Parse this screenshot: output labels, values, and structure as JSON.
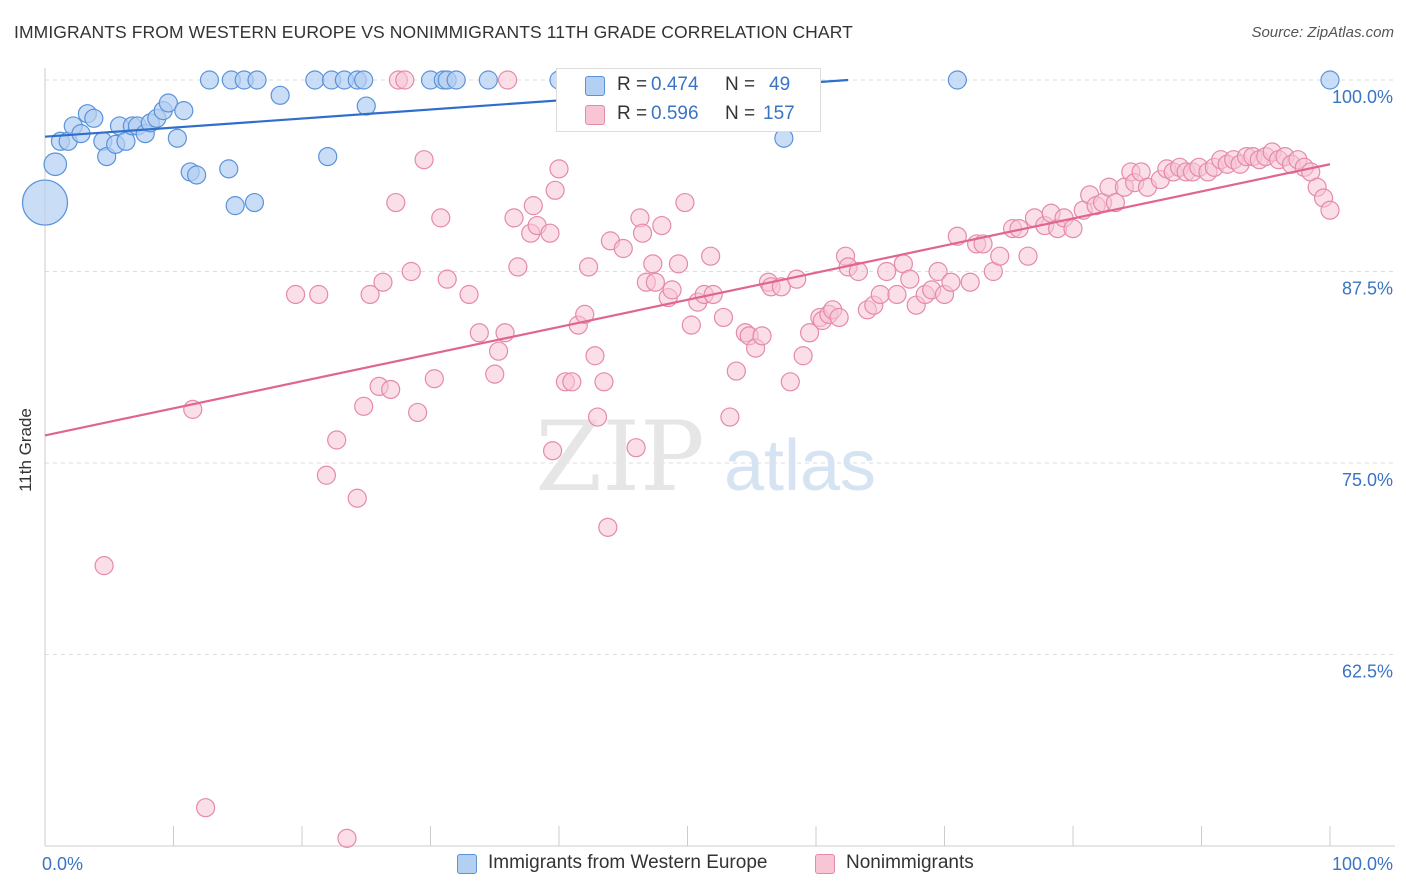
{
  "title": "IMMIGRANTS FROM WESTERN EUROPE VS NONIMMIGRANTS 11TH GRADE CORRELATION CHART",
  "source": "Source: ZipAtlas.com",
  "watermark": {
    "zip": "ZIP",
    "atlas": "atlas"
  },
  "legend": {
    "r_label": "R =",
    "n_label": "N =",
    "blue": {
      "r": "0.474",
      "n": "49"
    },
    "pink": {
      "r": "0.596",
      "n": "157"
    }
  },
  "bottom_legend": {
    "blue": "Immigrants from Western Europe",
    "pink": "Nonimmigrants"
  },
  "colors": {
    "blue_fill": "#b3cff2",
    "blue_stroke": "#5b93d9",
    "blue_line": "#2f6fcb",
    "pink_fill": "#f8c5d5",
    "pink_stroke": "#e58aa8",
    "pink_line": "#e0668f",
    "tick_label": "#3a74c4",
    "grid": "#dddddd"
  },
  "chart_data": {
    "type": "scatter",
    "title": "IMMIGRANTS FROM WESTERN EUROPE VS NONIMMIGRANTS 11TH GRADE CORRELATION CHART",
    "xlabel": "",
    "ylabel": "11th Grade",
    "xlim": [
      0,
      100
    ],
    "ylim": [
      50,
      100
    ],
    "x_tick_labels": [
      "0.0%",
      "100.0%"
    ],
    "y_ticks": [
      62.5,
      75.0,
      87.5,
      100.0
    ],
    "y_tick_labels": [
      "62.5%",
      "75.0%",
      "87.5%",
      "100.0%"
    ],
    "grid": true,
    "legend_position": "top-center",
    "series": [
      {
        "name": "Immigrants from Western Europe",
        "r": 0.474,
        "n": 49,
        "trend": {
          "x": [
            0,
            62.5
          ],
          "y": [
            96.3,
            100.0
          ]
        },
        "points": [
          [
            0.0,
            92.0,
            3
          ],
          [
            0.8,
            94.5,
            1.5
          ],
          [
            1.2,
            96.0,
            1.2
          ],
          [
            1.8,
            96.0,
            1.2
          ],
          [
            2.2,
            97.0,
            1.2
          ],
          [
            2.8,
            96.5,
            1.2
          ],
          [
            3.3,
            97.8,
            1.2
          ],
          [
            3.8,
            97.5,
            1.2
          ],
          [
            4.5,
            96.0,
            1.2
          ],
          [
            4.8,
            95.0,
            1.2
          ],
          [
            5.5,
            95.8,
            1.2
          ],
          [
            5.8,
            97.0,
            1.2
          ],
          [
            6.3,
            96.0,
            1.2
          ],
          [
            6.8,
            97.0,
            1.2
          ],
          [
            7.2,
            97.0,
            1.2
          ],
          [
            7.8,
            96.5,
            1.2
          ],
          [
            8.2,
            97.2,
            1.2
          ],
          [
            8.7,
            97.5,
            1.2
          ],
          [
            9.2,
            98.0,
            1.2
          ],
          [
            9.6,
            98.5,
            1.2
          ],
          [
            10.3,
            96.2,
            1.2
          ],
          [
            10.8,
            98.0,
            1.2
          ],
          [
            11.3,
            94.0,
            1.2
          ],
          [
            11.8,
            93.8,
            1.2
          ],
          [
            12.8,
            100.0,
            1.2
          ],
          [
            14.3,
            94.2,
            1.2
          ],
          [
            14.8,
            91.8,
            1.2
          ],
          [
            14.5,
            100.0,
            1.2
          ],
          [
            15.5,
            100.0,
            1.2
          ],
          [
            16.3,
            92.0,
            1.2
          ],
          [
            16.5,
            100.0,
            1.2
          ],
          [
            18.3,
            99.0,
            1.2
          ],
          [
            21.0,
            100.0,
            1.2
          ],
          [
            22.0,
            95.0,
            1.2
          ],
          [
            22.3,
            100.0,
            1.2
          ],
          [
            23.3,
            100.0,
            1.2
          ],
          [
            24.3,
            100.0,
            1.2
          ],
          [
            25.0,
            98.3,
            1.2
          ],
          [
            24.8,
            100.0,
            1.2
          ],
          [
            30.0,
            100.0,
            1.2
          ],
          [
            31.0,
            100.0,
            1.2
          ],
          [
            31.3,
            100.0,
            1.2
          ],
          [
            32.0,
            100.0,
            1.2
          ],
          [
            34.5,
            100.0,
            1.2
          ],
          [
            40.0,
            100.0,
            1.2
          ],
          [
            55.5,
            100.0,
            1.2
          ],
          [
            57.5,
            96.2,
            1.2
          ],
          [
            71.0,
            100.0,
            1.2
          ],
          [
            100.0,
            100.0,
            1.2
          ]
        ]
      },
      {
        "name": "Nonimmigrants",
        "r": 0.596,
        "n": 157,
        "trend": {
          "x": [
            0,
            100
          ],
          "y": [
            76.8,
            94.5
          ]
        },
        "points": [
          [
            4.6,
            68.3
          ],
          [
            11.5,
            78.5
          ],
          [
            12.5,
            52.5
          ],
          [
            19.5,
            86.0
          ],
          [
            21.3,
            86.0
          ],
          [
            21.9,
            74.2
          ],
          [
            22.7,
            76.5
          ],
          [
            23.5,
            50.5
          ],
          [
            24.3,
            72.7
          ],
          [
            24.8,
            78.7
          ],
          [
            25.3,
            86.0
          ],
          [
            26.0,
            80.0
          ],
          [
            26.3,
            86.8
          ],
          [
            26.9,
            79.8
          ],
          [
            27.3,
            92.0
          ],
          [
            27.5,
            100.0
          ],
          [
            28.0,
            100.0
          ],
          [
            28.5,
            87.5
          ],
          [
            29.0,
            78.3
          ],
          [
            29.5,
            94.8
          ],
          [
            30.3,
            80.5
          ],
          [
            30.8,
            91.0
          ],
          [
            31.3,
            87.0
          ],
          [
            33.0,
            86.0
          ],
          [
            33.8,
            83.5
          ],
          [
            35.0,
            80.8
          ],
          [
            35.3,
            82.3
          ],
          [
            35.8,
            83.5
          ],
          [
            36.0,
            100.0
          ],
          [
            36.5,
            91.0
          ],
          [
            36.8,
            87.8
          ],
          [
            37.8,
            90.0
          ],
          [
            38.0,
            91.8
          ],
          [
            38.3,
            90.5
          ],
          [
            39.3,
            90.0
          ],
          [
            39.5,
            75.8
          ],
          [
            39.7,
            92.8
          ],
          [
            40.0,
            94.2
          ],
          [
            40.5,
            80.3
          ],
          [
            41.0,
            80.3
          ],
          [
            41.5,
            84.0
          ],
          [
            42.0,
            84.7
          ],
          [
            42.3,
            87.8
          ],
          [
            42.8,
            82.0
          ],
          [
            43.0,
            78.0
          ],
          [
            43.5,
            80.3
          ],
          [
            43.8,
            70.8
          ],
          [
            44.0,
            89.5
          ],
          [
            45.0,
            89.0
          ],
          [
            46.0,
            76.0
          ],
          [
            46.3,
            91.0
          ],
          [
            46.5,
            90.0
          ],
          [
            46.8,
            86.8
          ],
          [
            47.3,
            88.0
          ],
          [
            47.5,
            86.8
          ],
          [
            48.0,
            90.5
          ],
          [
            48.5,
            85.8
          ],
          [
            48.8,
            86.3
          ],
          [
            49.3,
            88.0
          ],
          [
            49.8,
            92.0
          ],
          [
            50.3,
            84.0
          ],
          [
            50.8,
            85.5
          ],
          [
            51.3,
            86.0
          ],
          [
            51.8,
            88.5
          ],
          [
            52.0,
            86.0
          ],
          [
            52.8,
            84.5
          ],
          [
            53.3,
            78.0
          ],
          [
            53.8,
            81.0
          ],
          [
            54.5,
            83.5
          ],
          [
            54.8,
            83.3
          ],
          [
            55.3,
            82.5
          ],
          [
            55.8,
            83.3
          ],
          [
            56.3,
            86.8
          ],
          [
            56.5,
            86.5
          ],
          [
            57.3,
            86.5
          ],
          [
            58.0,
            80.3
          ],
          [
            58.5,
            87.0
          ],
          [
            59.0,
            82.0
          ],
          [
            59.5,
            83.5
          ],
          [
            60.3,
            84.5
          ],
          [
            60.5,
            84.3
          ],
          [
            61.0,
            84.7
          ],
          [
            61.3,
            85.0
          ],
          [
            61.8,
            84.5
          ],
          [
            62.3,
            88.5
          ],
          [
            62.5,
            87.8
          ],
          [
            63.3,
            87.5
          ],
          [
            64.0,
            85.0
          ],
          [
            64.5,
            85.3
          ],
          [
            65.0,
            86.0
          ],
          [
            65.5,
            87.5
          ],
          [
            66.3,
            86.0
          ],
          [
            66.8,
            88.0
          ],
          [
            67.3,
            87.0
          ],
          [
            67.8,
            85.3
          ],
          [
            68.5,
            86.0
          ],
          [
            69.0,
            86.3
          ],
          [
            69.5,
            87.5
          ],
          [
            70.0,
            86.0
          ],
          [
            70.5,
            86.8
          ],
          [
            71.0,
            89.8
          ],
          [
            72.0,
            86.8
          ],
          [
            72.5,
            89.3
          ],
          [
            73.0,
            89.3
          ],
          [
            73.8,
            87.5
          ],
          [
            74.3,
            88.5
          ],
          [
            75.3,
            90.3
          ],
          [
            75.8,
            90.3
          ],
          [
            76.5,
            88.5
          ],
          [
            77.0,
            91.0
          ],
          [
            77.8,
            90.5
          ],
          [
            78.3,
            91.3
          ],
          [
            78.8,
            90.3
          ],
          [
            79.3,
            91.0
          ],
          [
            80.0,
            90.3
          ],
          [
            80.8,
            91.5
          ],
          [
            81.3,
            92.5
          ],
          [
            81.8,
            91.8
          ],
          [
            82.3,
            92.0
          ],
          [
            82.8,
            93.0
          ],
          [
            83.3,
            92.0
          ],
          [
            84.0,
            93.0
          ],
          [
            84.5,
            94.0
          ],
          [
            84.8,
            93.3
          ],
          [
            85.3,
            94.0
          ],
          [
            85.8,
            93.0
          ],
          [
            86.8,
            93.5
          ],
          [
            87.3,
            94.2
          ],
          [
            87.8,
            94.0
          ],
          [
            88.3,
            94.3
          ],
          [
            88.8,
            94.0
          ],
          [
            89.3,
            94.0
          ],
          [
            89.8,
            94.3
          ],
          [
            90.5,
            94.0
          ],
          [
            91.0,
            94.3
          ],
          [
            91.5,
            94.8
          ],
          [
            92.0,
            94.5
          ],
          [
            92.5,
            94.8
          ],
          [
            93.0,
            94.5
          ],
          [
            93.5,
            95.0
          ],
          [
            94.0,
            95.0
          ],
          [
            94.5,
            94.8
          ],
          [
            95.0,
            95.0
          ],
          [
            95.5,
            95.3
          ],
          [
            96.0,
            94.8
          ],
          [
            96.5,
            95.0
          ],
          [
            97.0,
            94.5
          ],
          [
            97.5,
            94.8
          ],
          [
            98.0,
            94.3
          ],
          [
            98.5,
            94.0
          ],
          [
            99.0,
            93.0
          ],
          [
            99.5,
            92.3
          ],
          [
            100.0,
            91.5
          ]
        ]
      }
    ]
  }
}
